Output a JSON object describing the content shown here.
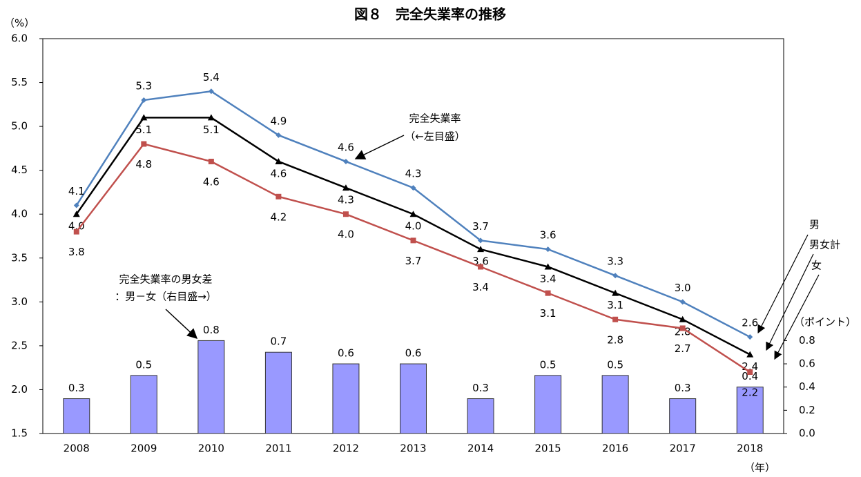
{
  "chart_data": {
    "type": "line",
    "title": "図８　完全失業率の推移",
    "y_unit": "（%）",
    "y2_unit": "（ポイント）",
    "x_unit": "（年）",
    "categories": [
      "2008",
      "2009",
      "2010",
      "2011",
      "2012",
      "2013",
      "2014",
      "2015",
      "2016",
      "2017",
      "2018"
    ],
    "ylim": [
      1.5,
      6.0
    ],
    "yticks": [
      1.5,
      {
        "value": 2,
        "label": "2.0"
      },
      2.5,
      {
        "value": 3,
        "label": "3.0"
      },
      3.5,
      {
        "value": 4,
        "label": "4.0"
      },
      4.5,
      {
        "value": 5,
        "label": "5.0"
      },
      5.5,
      {
        "value": 6,
        "label": "6.0"
      }
    ],
    "y2lim": [
      0,
      3.4
    ],
    "y2ticks": [
      {
        "value": 0,
        "label": "0.0"
      },
      0.2,
      0.4,
      0.6,
      0.8
    ],
    "series": [
      {
        "type": "line",
        "name": "男",
        "color": "#4f81bd",
        "marker": "diamond",
        "values": [
          4.1,
          5.3,
          5.4,
          4.9,
          4.6,
          4.3,
          3.7,
          3.6,
          3.3,
          3.0,
          2.6
        ],
        "value_labels": [
          "4.1",
          "5.3",
          "5.4",
          "4.9",
          "4.6",
          "4.3",
          "3.7",
          "3.6",
          "3.3",
          "3.0",
          "2.6"
        ]
      },
      {
        "type": "line",
        "name": "男女計",
        "color": "#000000",
        "marker": "triangle",
        "values": [
          4.0,
          5.1,
          5.1,
          4.6,
          4.3,
          4.0,
          3.6,
          3.4,
          3.1,
          2.8,
          2.4
        ],
        "value_labels": [
          "4.0",
          "5.1",
          "5.1",
          "4.6",
          "4.3",
          "4.0",
          "3.6",
          "3.4",
          "3.1",
          "2.8",
          "2.4"
        ]
      },
      {
        "type": "line",
        "name": "女",
        "color": "#c0504d",
        "marker": "square",
        "values": [
          3.8,
          4.8,
          4.6,
          4.2,
          4.0,
          3.7,
          3.4,
          3.1,
          2.8,
          2.7,
          2.2
        ],
        "value_labels": [
          "3.8",
          "4.8",
          "4.6",
          "4.2",
          "4.0",
          "3.7",
          "3.4",
          "3.1",
          "2.8",
          "2.7",
          "2.2"
        ]
      },
      {
        "type": "bar",
        "axis": "y2",
        "color": "#9999ff",
        "values": [
          0.3,
          0.5,
          0.8,
          0.7,
          0.6,
          0.6,
          0.3,
          0.5,
          0.5,
          0.3,
          0.4
        ]
      }
    ],
    "annotations": [
      "完全失業率",
      "（←左目盛）",
      "完全失業率の男女差",
      "：男－女（右目盛→）"
    ]
  }
}
